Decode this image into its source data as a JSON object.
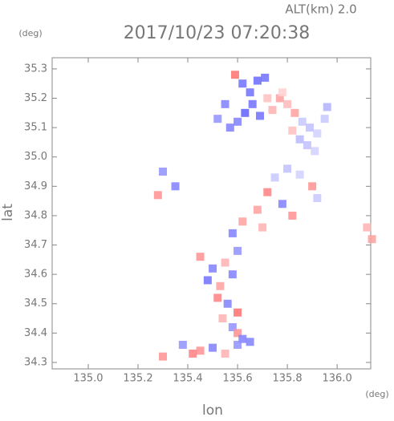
{
  "chart_data": {
    "type": "scatter",
    "title": "2017/10/23 07:20:38",
    "subtitle": "ALT(km) 2.0",
    "x_unit": "(deg)",
    "y_unit": "(deg)",
    "xlabel": "lon",
    "ylabel": "lat",
    "xlim": [
      134.855,
      136.135
    ],
    "ylim": [
      34.278,
      35.338
    ],
    "xticks": [
      {
        "value": 135.0,
        "label": "135.0"
      },
      135.2,
      135.4,
      135.6,
      135.8,
      {
        "value": 136.0,
        "label": "136.0"
      }
    ],
    "yticks": [
      34.3,
      34.4,
      34.5,
      34.6,
      34.7,
      34.8,
      34.9,
      {
        "value": 35.0,
        "label": "35.0"
      },
      35.1,
      35.2,
      35.3
    ],
    "x": [
      135.59,
      135.62,
      135.65,
      135.68,
      135.71,
      135.72,
      135.66,
      135.63,
      135.6,
      135.69,
      135.74,
      135.55,
      135.52,
      135.57,
      135.77,
      135.8,
      135.83,
      135.86,
      135.89,
      135.92,
      135.95,
      135.85,
      135.88,
      135.91,
      135.82,
      135.78,
      135.96,
      135.3,
      135.28,
      135.35,
      135.75,
      135.8,
      135.85,
      135.9,
      135.92,
      135.72,
      135.68,
      135.78,
      135.82,
      135.62,
      135.58,
      135.7,
      135.45,
      135.5,
      135.55,
      135.6,
      135.48,
      135.53,
      135.58,
      135.52,
      135.56,
      135.6,
      135.54,
      135.58,
      135.6,
      135.62,
      135.38,
      135.45,
      135.5,
      135.55,
      135.6,
      135.65,
      135.42,
      136.12,
      136.14,
      135.3
    ],
    "y": [
      35.28,
      35.25,
      35.22,
      35.26,
      35.27,
      35.2,
      35.18,
      35.15,
      35.12,
      35.14,
      35.16,
      35.18,
      35.13,
      35.1,
      35.2,
      35.18,
      35.15,
      35.12,
      35.1,
      35.08,
      35.13,
      35.06,
      35.04,
      35.02,
      35.09,
      35.22,
      35.17,
      34.95,
      34.87,
      34.9,
      34.93,
      34.96,
      34.94,
      34.9,
      34.86,
      34.88,
      34.82,
      34.84,
      34.8,
      34.78,
      34.74,
      34.76,
      34.66,
      34.62,
      34.64,
      34.68,
      34.58,
      34.56,
      34.6,
      34.52,
      34.5,
      34.47,
      34.45,
      34.42,
      34.4,
      34.38,
      34.36,
      34.34,
      34.35,
      34.33,
      34.36,
      34.37,
      34.33,
      34.76,
      34.72,
      34.32
    ],
    "colors": [
      "#ff7070",
      "#7070ff",
      "#7070ff",
      "#6a6aff",
      "#7070ff",
      "#ffc0c0",
      "#7070ff",
      "#6060ff",
      "#8080ff",
      "#7070ff",
      "#ffb0b0",
      "#8080ff",
      "#9090ff",
      "#8080ff",
      "#ffa0a0",
      "#ffb8b8",
      "#ffa0a0",
      "#c8c8ff",
      "#c0c0ff",
      "#d0d0ff",
      "#c8c8ff",
      "#b8b8ff",
      "#c0c0ff",
      "#d0d0ff",
      "#ffc0c0",
      "#ffd0d0",
      "#b0b0ff",
      "#9090ff",
      "#ff9090",
      "#8080ff",
      "#c8c8ff",
      "#c0c0ff",
      "#d0d0ff",
      "#ff9090",
      "#c8c8ff",
      "#ff8080",
      "#ffa0a0",
      "#8080ff",
      "#ff9090",
      "#ffa0a0",
      "#8080ff",
      "#ffb0b0",
      "#ff9090",
      "#8080ff",
      "#ffb0b0",
      "#9090ff",
      "#7070ff",
      "#ffa0a0",
      "#8080ff",
      "#ff8080",
      "#8080ff",
      "#ff7070",
      "#ffb0b0",
      "#9090ff",
      "#ff9090",
      "#8080ff",
      "#9090ff",
      "#ff9090",
      "#8080ff",
      "#ffb0b0",
      "#9090ff",
      "#8080ff",
      "#ff8080",
      "#ffb0b0",
      "#ffa0a0",
      "#ff9090"
    ]
  }
}
